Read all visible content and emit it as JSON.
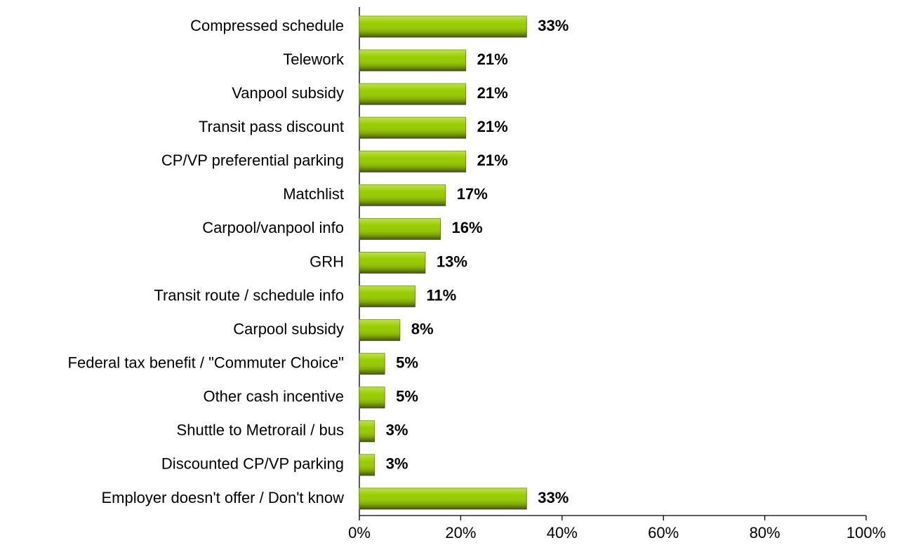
{
  "chart_data": {
    "type": "bar",
    "orientation": "horizontal",
    "categories": [
      "Compressed schedule",
      "Telework",
      "Vanpool subsidy",
      "Transit pass discount",
      "CP/VP preferential parking",
      "Matchlist",
      "Carpool/vanpool info",
      "GRH",
      "Transit route / schedule info",
      "Carpool subsidy",
      "Federal tax benefit / \"Commuter Choice\"",
      "Other cash incentive",
      "Shuttle to Metrorail / bus",
      "Discounted CP/VP parking",
      "Employer doesn't offer / Don't know"
    ],
    "values": [
      33,
      21,
      21,
      21,
      21,
      17,
      16,
      13,
      11,
      8,
      5,
      5,
      3,
      3,
      33
    ],
    "value_labels": [
      "33%",
      "21%",
      "21%",
      "21%",
      "21%",
      "17%",
      "16%",
      "13%",
      "11%",
      "8%",
      "5%",
      "5%",
      "3%",
      "3%",
      "33%"
    ],
    "color": "#99cc00",
    "xlim": [
      0,
      100
    ],
    "xticks": [
      {
        "value": 0,
        "label": "0%"
      },
      {
        "value": 20,
        "label": "20%"
      },
      {
        "value": 40,
        "label": "40%"
      },
      {
        "value": 60,
        "label": "60%"
      },
      {
        "value": 80,
        "label": "80%"
      },
      {
        "value": 100,
        "label": "100%"
      }
    ],
    "grid": false
  }
}
